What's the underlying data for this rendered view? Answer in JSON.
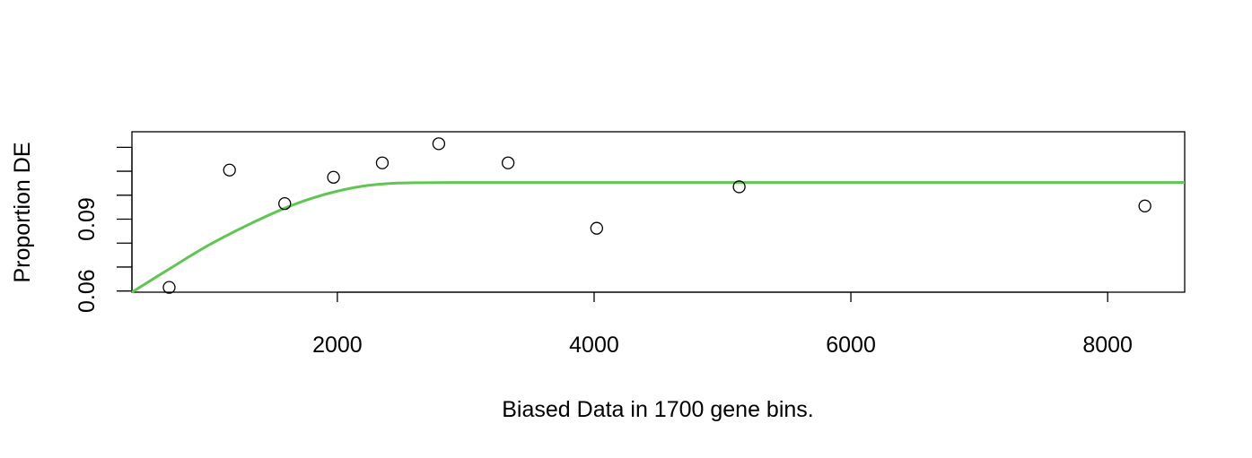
{
  "chart_data": {
    "type": "scatter",
    "title": "",
    "xlabel": "Biased Data in 1700 gene bins.",
    "ylabel": "Proportion DE",
    "xlim": [
      400,
      8600
    ],
    "ylim": [
      0.0595,
      0.1265
    ],
    "x_ticks": [
      2000,
      4000,
      6000,
      8000
    ],
    "x_tick_labels": [
      "2000",
      "4000",
      "6000",
      "8000"
    ],
    "y_ticks": [
      0.06,
      0.07,
      0.08,
      0.09,
      0.1,
      0.11,
      0.12
    ],
    "y_tick_labels": [
      "0.06",
      "",
      "",
      "0.09",
      "",
      "",
      ""
    ],
    "grid": false,
    "legend": null,
    "points": {
      "name": "",
      "x": [
        690,
        1160,
        1590,
        1970,
        2350,
        2790,
        3330,
        4020,
        5130,
        8290
      ],
      "y": [
        0.0615,
        0.1105,
        0.0965,
        0.1075,
        0.1135,
        0.1215,
        0.1135,
        0.0862,
        0.1035,
        0.0955
      ]
    },
    "fit_curve": {
      "name": "",
      "color": "#5fc652",
      "x": [
        400,
        700,
        1000,
        1300,
        1600,
        1800,
        2000,
        2200,
        2400,
        2600,
        3000,
        4000,
        5000,
        6000,
        7000,
        8000,
        8600
      ],
      "y": [
        0.0595,
        0.0695,
        0.0792,
        0.0875,
        0.0948,
        0.0987,
        0.1017,
        0.1038,
        0.1049,
        0.1052,
        0.1053,
        0.1053,
        0.1053,
        0.1053,
        0.1053,
        0.1053,
        0.1053
      ]
    }
  }
}
